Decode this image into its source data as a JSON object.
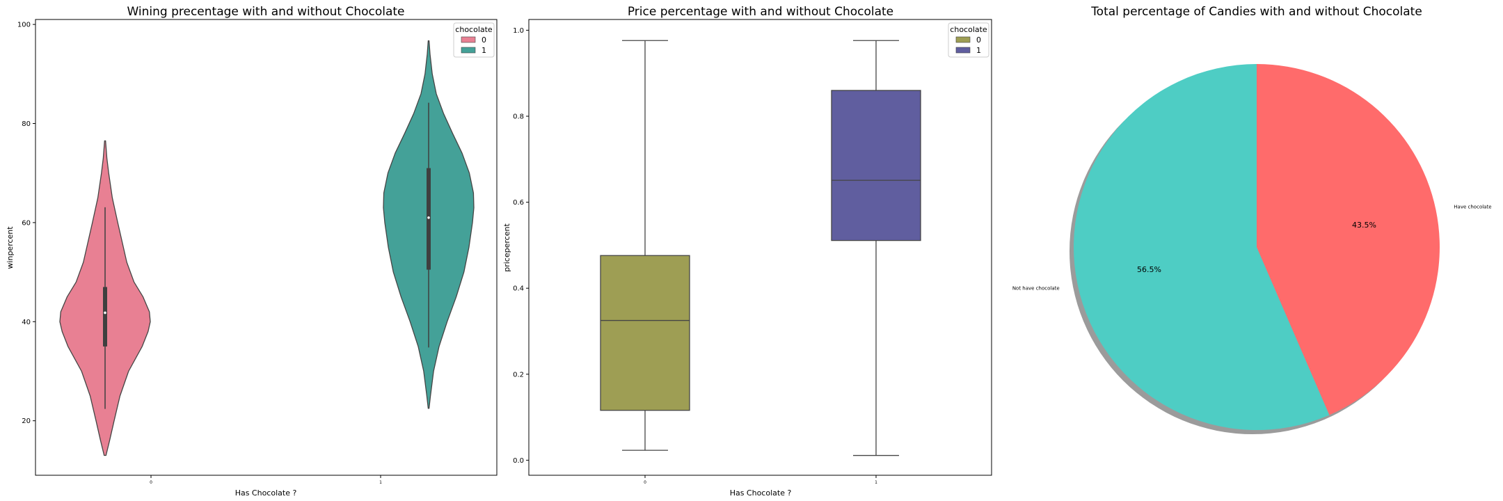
{
  "chart_data": [
    {
      "type": "violin",
      "title": "Wining precentage with and without Chocolate",
      "xlabel": "Has Chocolate ?",
      "ylabel": "winpercent",
      "categories": [
        "0",
        "1"
      ],
      "ylim": [
        9,
        101
      ],
      "yticks": [
        20,
        40,
        60,
        80,
        100
      ],
      "legend": {
        "title": "chocolate",
        "position": "top-right",
        "entries": [
          "0",
          "1"
        ]
      },
      "series": [
        {
          "name": "0",
          "color": "#e88093",
          "kde_min": 13,
          "kde_max": 76.5,
          "whisker_low": 22.4,
          "whisker_high": 63.1,
          "q1": 35,
          "median": 41.8,
          "q3": 47,
          "profile": [
            [
              13,
              0.02
            ],
            [
              16,
              0.1
            ],
            [
              20,
              0.2
            ],
            [
              25,
              0.33
            ],
            [
              30,
              0.52
            ],
            [
              35,
              0.82
            ],
            [
              38,
              0.95
            ],
            [
              40,
              1.0
            ],
            [
              42,
              0.98
            ],
            [
              45,
              0.84
            ],
            [
              48,
              0.64
            ],
            [
              52,
              0.48
            ],
            [
              56,
              0.38
            ],
            [
              60,
              0.28
            ],
            [
              65,
              0.16
            ],
            [
              70,
              0.08
            ],
            [
              73,
              0.04
            ],
            [
              76.5,
              0.01
            ]
          ]
        },
        {
          "name": "1",
          "color": "#44a198",
          "kde_min": 22.5,
          "kde_max": 96.7,
          "whisker_low": 34.8,
          "whisker_high": 84.2,
          "q1": 50.5,
          "median": 61,
          "q3": 71,
          "profile": [
            [
              22.5,
              0.01
            ],
            [
              25,
              0.04
            ],
            [
              30,
              0.11
            ],
            [
              35,
              0.23
            ],
            [
              40,
              0.41
            ],
            [
              45,
              0.61
            ],
            [
              50,
              0.78
            ],
            [
              55,
              0.89
            ],
            [
              60,
              0.97
            ],
            [
              63,
              1.0
            ],
            [
              66,
              0.99
            ],
            [
              70,
              0.9
            ],
            [
              74,
              0.74
            ],
            [
              78,
              0.53
            ],
            [
              82,
              0.33
            ],
            [
              86,
              0.17
            ],
            [
              90,
              0.08
            ],
            [
              94,
              0.03
            ],
            [
              96.7,
              0.01
            ]
          ]
        }
      ]
    },
    {
      "type": "box",
      "title": "Price percentage with and without Chocolate",
      "xlabel": "Has Chocolate ?",
      "ylabel": "pricepercent",
      "categories": [
        "0",
        "1"
      ],
      "ylim": [
        -0.035,
        1.025
      ],
      "yticks": [
        0.0,
        0.2,
        0.4,
        0.6,
        0.8,
        1.0
      ],
      "ytick_labels": [
        "0.0",
        "0.2",
        "0.4",
        "0.6",
        "0.8",
        "1.0"
      ],
      "legend": {
        "title": "chocolate",
        "position": "top-right",
        "entries": [
          "0",
          "1"
        ]
      },
      "series": [
        {
          "name": "0",
          "color": "#9e9e54",
          "whisker_low": 0.023,
          "q1": 0.116,
          "median": 0.325,
          "q3": 0.476,
          "whisker_high": 0.976
        },
        {
          "name": "1",
          "color": "#605e9f",
          "whisker_low": 0.011,
          "q1": 0.511,
          "median": 0.651,
          "q3": 0.86,
          "whisker_high": 0.976
        }
      ]
    },
    {
      "type": "pie",
      "title": "Total percentage of Candies with and without Chocolate",
      "slices": [
        {
          "label": "Not have chocolate",
          "value": 56.5,
          "pct_label": "56.5%",
          "color": "#4ecdc4"
        },
        {
          "label": "Have chocolate",
          "value": 43.5,
          "pct_label": "43.5%",
          "color": "#ff6b6b"
        }
      ],
      "shadow": true
    }
  ]
}
